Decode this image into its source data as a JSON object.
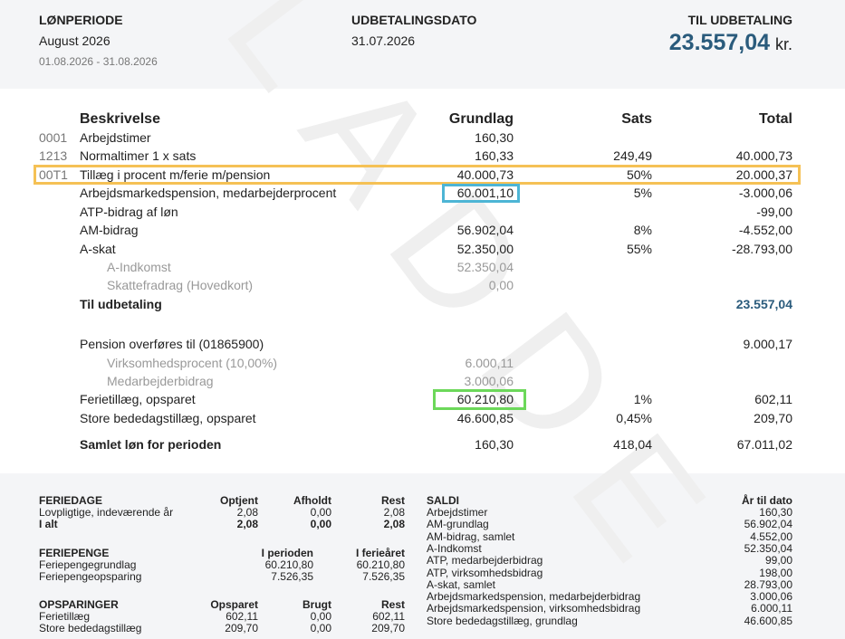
{
  "header": {
    "period_label": "LØNPERIODE",
    "period": "August 2026",
    "period_range": "01.08.2026 - 31.08.2026",
    "date_label": "UDBETALINGSDATO",
    "date": "31.07.2026",
    "payout_label": "TIL UDBETALING",
    "payout_amount": "23.557,04",
    "payout_unit": "kr."
  },
  "watermark": "KLADDE",
  "table": {
    "columns": [
      "Beskrivelse",
      "Grundlag",
      "Sats",
      "Total"
    ],
    "rows": [
      {
        "code": "0001",
        "text": "Arbejdstimer",
        "basis": "160,30"
      },
      {
        "code": "1213",
        "text": "Normaltimer 1 x sats",
        "basis": "160,33",
        "rate": "249,49",
        "total": "40.000,73"
      },
      {
        "code": "00T1",
        "text": "Tillæg i procent m/ferie m/pension",
        "basis": "40.000,73",
        "rate": "50%",
        "total": "20.000,37"
      },
      {
        "text": "Arbejdsmarkedspension, medarbejderprocent",
        "basis": "60.001,10",
        "rate": "5%",
        "total": "-3.000,06"
      },
      {
        "text": "ATP-bidrag af løn",
        "total": "-99,00"
      },
      {
        "text": "AM-bidrag",
        "basis": "56.902,04",
        "rate": "8%",
        "total": "-4.552,00"
      },
      {
        "text": "A-skat",
        "basis": "52.350,00",
        "rate": "55%",
        "total": "-28.793,00"
      },
      {
        "text": "A-Indkomst",
        "basis": "52.350,04"
      },
      {
        "text": "Skattefradrag (Hovedkort)",
        "basis": "0,00"
      },
      {
        "text": "Til udbetaling",
        "total": "23.557,04"
      },
      {
        "text": "Pension overføres til (01865900)",
        "total": "9.000,17"
      },
      {
        "text": "Virksomhedsprocent (10,00%)",
        "basis": "6.000,11"
      },
      {
        "text": "Medarbejderbidrag",
        "basis": "3.000,06"
      },
      {
        "text": "Ferietillæg, opsparet",
        "basis": "60.210,80",
        "rate": "1%",
        "total": "602,11"
      },
      {
        "text": "Store bededagstillæg, opsparet",
        "basis": "46.600,85",
        "rate": "0,45%",
        "total": "209,70"
      },
      {
        "text": "Samlet løn for perioden",
        "basis": "160,30",
        "rate": "418,04",
        "total": "67.011,02"
      }
    ]
  },
  "footer": {
    "sections": [
      {
        "title": "FERIEDAGE",
        "columns": [
          "Optjent",
          "Afholdt",
          "Rest"
        ],
        "rows": [
          {
            "label": "Lovpligtige, indeværende år",
            "values": [
              "2,08",
              "0,00",
              "2,08"
            ]
          },
          {
            "label": "I alt",
            "values": [
              "2,08",
              "0,00",
              "2,08"
            ]
          }
        ]
      },
      {
        "title": "FERIEPENGE",
        "columns": [
          "I perioden",
          "I ferieåret"
        ],
        "rows": [
          {
            "label": "Feriepengegrundlag",
            "values": [
              "60.210,80",
              "60.210,80"
            ]
          },
          {
            "label": "Feriepengeopsparing",
            "values": [
              "7.526,35",
              "7.526,35"
            ]
          }
        ]
      },
      {
        "title": "OPSPARINGER",
        "columns": [
          "Opsparet",
          "Brugt",
          "Rest"
        ],
        "rows": [
          {
            "label": "Ferietillæg",
            "values": [
              "602,11",
              "0,00",
              "602,11"
            ]
          },
          {
            "label": "Store bededagstillæg",
            "values": [
              "209,70",
              "0,00",
              "209,70"
            ]
          }
        ]
      }
    ],
    "saldi": {
      "title": "SALDI",
      "column": "År til dato",
      "rows": [
        {
          "label": "Arbejdstimer",
          "value": "160,30"
        },
        {
          "label": "AM-grundlag",
          "value": "56.902,04"
        },
        {
          "label": "AM-bidrag, samlet",
          "value": "4.552,00"
        },
        {
          "label": "A-Indkomst",
          "value": "52.350,04"
        },
        {
          "label": "ATP, medarbejderbidrag",
          "value": "99,00"
        },
        {
          "label": "ATP, virksomhedsbidrag",
          "value": "198,00"
        },
        {
          "label": "A-skat, samlet",
          "value": "28.793,00"
        },
        {
          "label": "Arbejdsmarkedspension, medarbejderbidrag",
          "value": "3.000,06"
        },
        {
          "label": "Arbejdsmarkedspension, virksomhedsbidrag",
          "value": "6.000,11"
        },
        {
          "label": "Store bededagstillæg, grundlag",
          "value": "46.600,85"
        }
      ]
    }
  }
}
